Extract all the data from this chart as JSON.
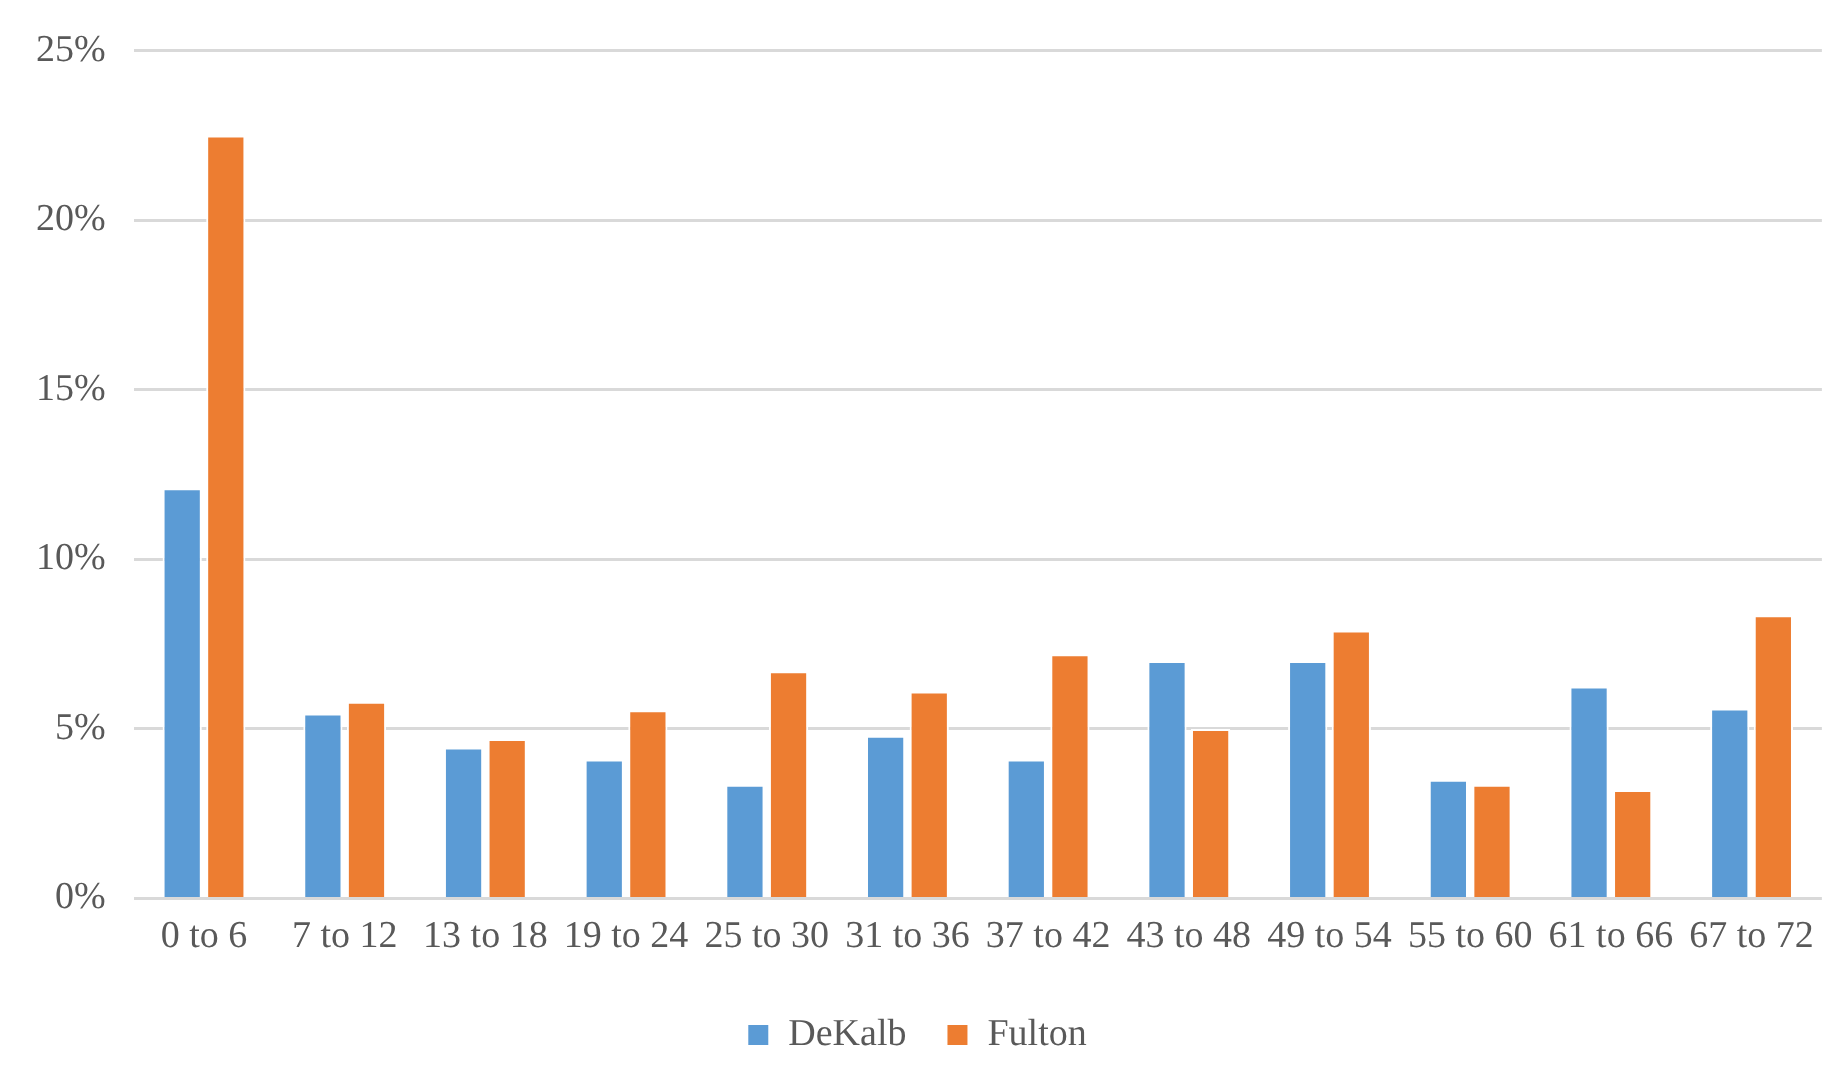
{
  "chart_data": {
    "type": "bar",
    "categories": [
      "0 to 6",
      "7 to 12",
      "13 to 18",
      "19 to 24",
      "25 to 30",
      "31 to 36",
      "37 to 42",
      "43 to 48",
      "49 to 54",
      "55 to 60",
      "61 to 66",
      "67 to 72"
    ],
    "series": [
      {
        "name": "DeKalb",
        "color": "#5b9bd5",
        "values": [
          12.1,
          5.45,
          4.45,
          4.1,
          3.35,
          4.8,
          4.1,
          7.0,
          7.0,
          3.5,
          6.25,
          5.6
        ]
      },
      {
        "name": "Fulton",
        "color": "#ed7d31",
        "values": [
          22.5,
          5.8,
          4.7,
          5.55,
          6.7,
          6.1,
          7.2,
          5.0,
          7.9,
          3.35,
          3.2,
          8.35
        ]
      }
    ],
    "ylim": [
      0,
      25
    ],
    "yticks": [
      {
        "value": 0,
        "label": "0%"
      },
      {
        "value": 5,
        "label": "5%"
      },
      {
        "value": 10,
        "label": "10%"
      },
      {
        "value": 15,
        "label": "15%"
      },
      {
        "value": 20,
        "label": "20%"
      },
      {
        "value": 25,
        "label": "25%"
      }
    ],
    "grid": "y",
    "legend": "bottom"
  }
}
